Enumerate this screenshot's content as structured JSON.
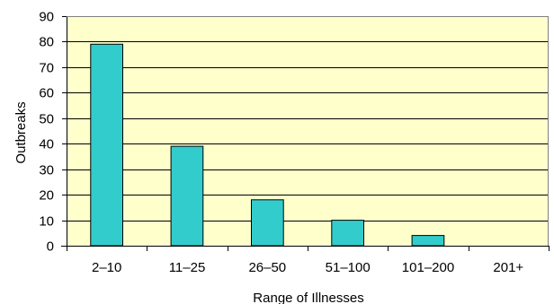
{
  "chart_data": {
    "type": "bar",
    "categories": [
      "2–10",
      "11–25",
      "26–50",
      "51–100",
      "101–200",
      "201+"
    ],
    "values": [
      79,
      39,
      18,
      10,
      4,
      0
    ],
    "xlabel": "Range of Illnesses",
    "ylabel": "Outbreaks",
    "ylim": [
      0,
      90
    ],
    "yticks": [
      0,
      10,
      20,
      30,
      40,
      50,
      60,
      70,
      80,
      90
    ],
    "grid": true,
    "legend": false,
    "colors": {
      "plot_background": "#ffffcc",
      "bar_fill": "#33cccc",
      "bar_stroke": "#000000",
      "grid": "#000000"
    }
  }
}
